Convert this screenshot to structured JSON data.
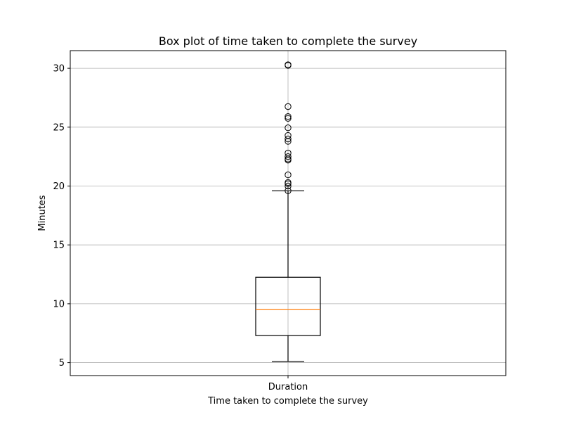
{
  "chart_data": {
    "type": "box",
    "title": "Box plot of time taken to complete the survey",
    "xlabel": "Time taken to complete the survey",
    "ylabel": "Minutes",
    "categories": [
      "Duration"
    ],
    "ylim": [
      3.9,
      31.5
    ],
    "yticks": [
      5,
      10,
      15,
      20,
      25,
      30
    ],
    "grid": true,
    "box": {
      "whisker_low": 5.1,
      "q1": 7.3,
      "median": 9.5,
      "q3": 12.25,
      "whisker_high": 19.6
    },
    "outliers": [
      19.6,
      20.0,
      20.2,
      20.3,
      20.95,
      22.2,
      22.3,
      22.5,
      22.8,
      23.8,
      24.0,
      24.3,
      24.95,
      25.75,
      25.9,
      26.75,
      30.25,
      30.3
    ],
    "colors": {
      "box": "#000000",
      "median": "#ff7f0e",
      "grid": "#b0b0b0"
    }
  }
}
